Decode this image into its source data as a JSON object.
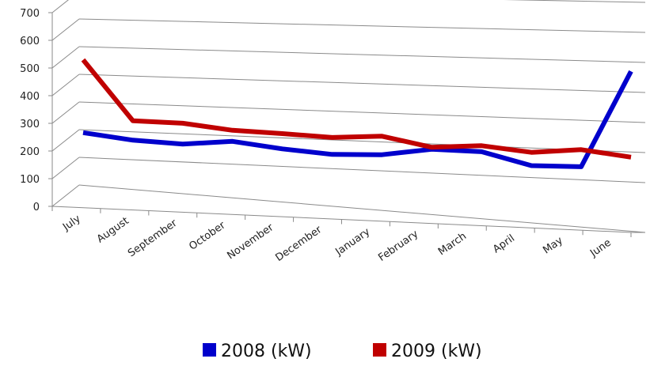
{
  "chart_data": {
    "type": "line",
    "title": "",
    "xlabel": "",
    "ylabel": "",
    "ylim": [
      0,
      700
    ],
    "y_ticks": [
      "0",
      "100",
      "200",
      "300",
      "400",
      "500",
      "600",
      "700"
    ],
    "categories": [
      "July",
      "August",
      "September",
      "October",
      "November",
      "December",
      "January",
      "February",
      "March",
      "April",
      "May",
      "June"
    ],
    "series": [
      {
        "name": "2008 (kW)",
        "color": "#0000cc",
        "values": [
          255,
          235,
          228,
          245,
          225,
          212,
          218,
          245,
          243,
          200,
          203,
          555
        ]
      },
      {
        "name": "2009 (kW)",
        "color": "#c00000",
        "values": [
          518,
          305,
          303,
          285,
          280,
          273,
          285,
          252,
          265,
          248,
          265,
          245
        ]
      }
    ],
    "grid": true,
    "style": "3d-perspective",
    "legend_position": "bottom"
  }
}
